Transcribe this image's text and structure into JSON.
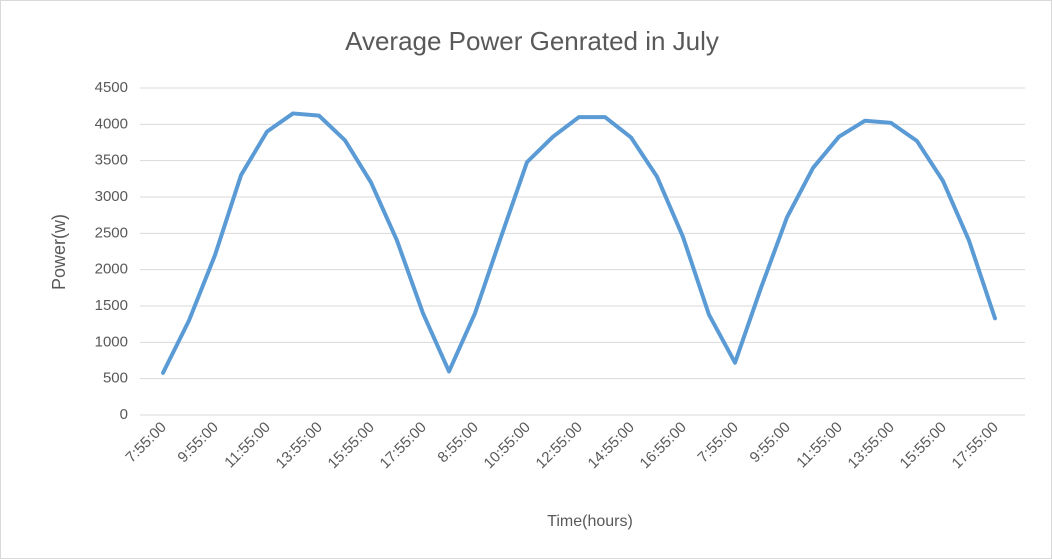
{
  "chart_data": {
    "type": "line",
    "title": "Average Power Genrated in July",
    "x_label": "Time(hours)",
    "y_label": "Power(w)",
    "categories": [
      "7:55:00",
      null,
      "9:55:00",
      null,
      "11:55:00",
      null,
      "13:55:00",
      null,
      "15:55:00",
      null,
      "17:55:00",
      null,
      "8:55:00",
      null,
      "10:55:00",
      null,
      "12:55:00",
      null,
      "14:55:00",
      null,
      "16:55:00",
      null,
      "7:55:00",
      null,
      "9:55:00",
      null,
      "11:55:00",
      null,
      "13:55:00",
      null,
      "15:55:00",
      null,
      "17:55:00"
    ],
    "values": [
      580,
      1300,
      2200,
      3300,
      3900,
      4150,
      4120,
      3780,
      3200,
      2400,
      1400,
      600,
      1400,
      2450,
      3480,
      3830,
      4100,
      4100,
      3820,
      3280,
      2450,
      1380,
      720,
      1750,
      2720,
      3400,
      3830,
      4050,
      4020,
      3770,
      3220,
      2400,
      1330
    ],
    "color": "#5b9bd5",
    "ylim": [
      0,
      4500
    ],
    "yticks": [
      0,
      500,
      1000,
      1500,
      2000,
      2500,
      3000,
      3500,
      4000,
      4500
    ],
    "grid": true
  }
}
